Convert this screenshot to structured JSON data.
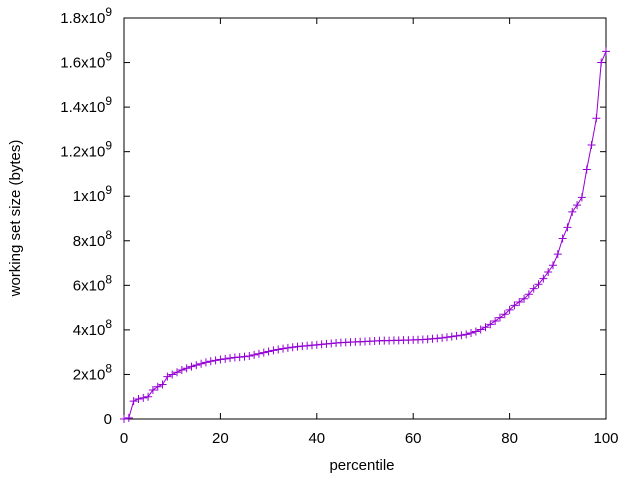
{
  "chart_data": {
    "type": "line",
    "title": "",
    "xlabel": "percentile",
    "ylabel": "working set size (bytes)",
    "xlim": [
      0,
      100
    ],
    "ylim": [
      0,
      1800000000
    ],
    "grid": false,
    "legend": "none",
    "marker": "+",
    "x_ticks": [
      {
        "value": 0,
        "label": "0"
      },
      {
        "value": 20,
        "label": "20"
      },
      {
        "value": 40,
        "label": "40"
      },
      {
        "value": 60,
        "label": "60"
      },
      {
        "value": 80,
        "label": "80"
      },
      {
        "value": 100,
        "label": "100"
      }
    ],
    "y_ticks": [
      {
        "value": 0,
        "mantissa": "0",
        "exp": ""
      },
      {
        "value": 200000000,
        "mantissa": "2x10",
        "exp": "8"
      },
      {
        "value": 400000000,
        "mantissa": "4x10",
        "exp": "8"
      },
      {
        "value": 600000000,
        "mantissa": "6x10",
        "exp": "8"
      },
      {
        "value": 800000000,
        "mantissa": "8x10",
        "exp": "8"
      },
      {
        "value": 1000000000,
        "mantissa": "1x10",
        "exp": "9"
      },
      {
        "value": 1200000000,
        "mantissa": "1.2x10",
        "exp": "9"
      },
      {
        "value": 1400000000,
        "mantissa": "1.4x10",
        "exp": "9"
      },
      {
        "value": 1600000000,
        "mantissa": "1.6x10",
        "exp": "9"
      },
      {
        "value": 1800000000,
        "mantissa": "1.8x10",
        "exp": "9"
      }
    ],
    "series": [
      {
        "color": "#9400d3",
        "x": [
          0,
          1,
          2,
          3,
          4,
          5,
          6,
          7,
          8,
          9,
          10,
          11,
          12,
          13,
          14,
          15,
          16,
          17,
          18,
          19,
          20,
          21,
          22,
          23,
          24,
          25,
          26,
          27,
          28,
          29,
          30,
          31,
          32,
          33,
          34,
          35,
          36,
          37,
          38,
          39,
          40,
          41,
          42,
          43,
          44,
          45,
          46,
          47,
          48,
          49,
          50,
          51,
          52,
          53,
          54,
          55,
          56,
          57,
          58,
          59,
          60,
          61,
          62,
          63,
          64,
          65,
          66,
          67,
          68,
          69,
          70,
          71,
          72,
          73,
          74,
          75,
          76,
          77,
          78,
          79,
          80,
          81,
          82,
          83,
          84,
          85,
          86,
          87,
          88,
          89,
          90,
          91,
          92,
          93,
          94,
          95,
          96,
          97,
          98,
          99,
          100
        ],
        "y": [
          0,
          5000000,
          80000000,
          90000000,
          95000000,
          100000000,
          130000000,
          145000000,
          155000000,
          190000000,
          200000000,
          210000000,
          220000000,
          228000000,
          235000000,
          242000000,
          248000000,
          254000000,
          259000000,
          263000000,
          267000000,
          270000000,
          273000000,
          276000000,
          278000000,
          280000000,
          283000000,
          288000000,
          293000000,
          298000000,
          303000000,
          308000000,
          312000000,
          316000000,
          319000000,
          322000000,
          325000000,
          327000000,
          329000000,
          331000000,
          333000000,
          335000000,
          337000000,
          339000000,
          341000000,
          343000000,
          344000000,
          345000000,
          346000000,
          347000000,
          348000000,
          349000000,
          350000000,
          351000000,
          352000000,
          352000000,
          353000000,
          353000000,
          354000000,
          354000000,
          355000000,
          356000000,
          357000000,
          358000000,
          360000000,
          362000000,
          364000000,
          367000000,
          370000000,
          373000000,
          376000000,
          380000000,
          386000000,
          393000000,
          402000000,
          412000000,
          425000000,
          440000000,
          455000000,
          470000000,
          490000000,
          510000000,
          525000000,
          540000000,
          560000000,
          585000000,
          605000000,
          630000000,
          660000000,
          690000000,
          740000000,
          810000000,
          860000000,
          930000000,
          960000000,
          995000000,
          1120000000,
          1230000000,
          1350000000,
          1600000000,
          1650000000
        ]
      }
    ]
  }
}
